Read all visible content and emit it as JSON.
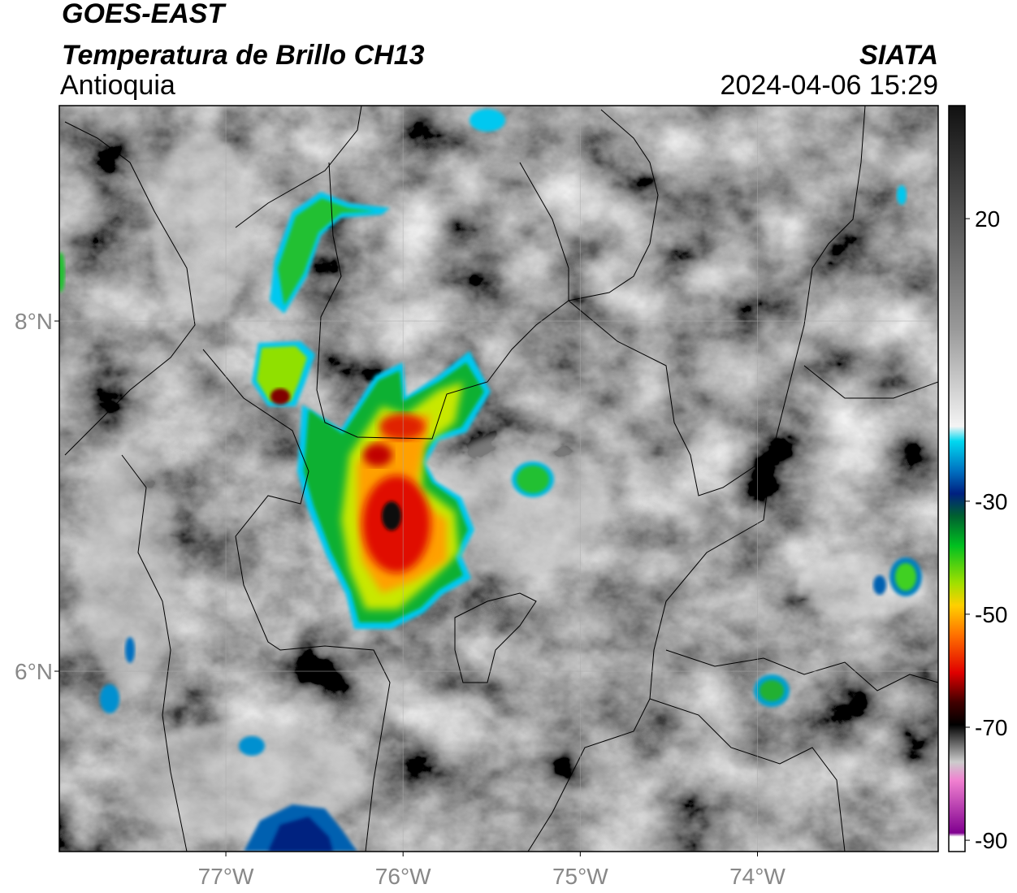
{
  "header": {
    "title": "GOES-EAST",
    "subtitle": "Temperatura de Brillo CH13",
    "region": "Antioquia",
    "source": "SIATA",
    "datetime": "2024-04-06 15:29"
  },
  "map": {
    "xlim": [
      -77.94,
      -72.98
    ],
    "ylim": [
      4.97,
      9.23
    ],
    "grid": true,
    "xticks": [
      {
        "value": -77,
        "label": "77°W"
      },
      {
        "value": -76,
        "label": "76°W"
      },
      {
        "value": -75,
        "label": "75°W"
      },
      {
        "value": -74,
        "label": "74°W"
      }
    ],
    "yticks": [
      {
        "value": 8,
        "label": "8°N"
      },
      {
        "value": 6,
        "label": "6°N"
      }
    ]
  },
  "colorbar": {
    "lim": [
      -92,
      40
    ],
    "ticks": [
      20,
      -30,
      -50,
      -70,
      -90
    ]
  }
}
